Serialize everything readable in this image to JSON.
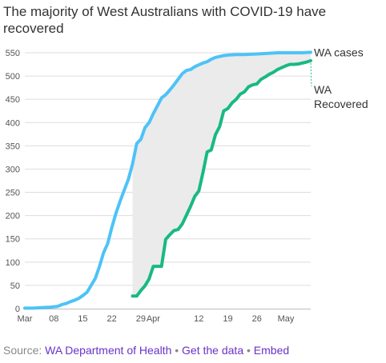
{
  "chart_data": {
    "type": "line",
    "title": "The majority of West Australians with COVID-19 have recovered",
    "xlabel": "",
    "ylabel": "",
    "x_ticks": [
      "Mar",
      "08",
      "15",
      "22",
      "29",
      "Apr",
      "12",
      "19",
      "26",
      "May"
    ],
    "x_tick_days": [
      1,
      8,
      15,
      22,
      29,
      32,
      43,
      50,
      57,
      64
    ],
    "xlim_days": [
      1,
      70
    ],
    "y_ticks": [
      0,
      50,
      100,
      150,
      200,
      250,
      300,
      350,
      400,
      450,
      500,
      550
    ],
    "ylim": [
      0,
      550
    ],
    "grid": true,
    "shaded_region": "between series from Mar 27",
    "series": [
      {
        "name": "WA cases",
        "color": "#4dc3f7",
        "x_days": [
          1,
          3,
          5,
          7,
          9,
          10,
          11,
          12,
          13,
          14,
          15,
          16,
          17,
          18,
          19,
          20,
          21,
          22,
          23,
          24,
          25,
          26,
          27,
          28,
          29,
          30,
          31,
          32,
          33,
          34,
          35,
          36,
          37,
          38,
          39,
          40,
          41,
          42,
          43,
          44,
          45,
          46,
          47,
          48,
          49,
          50,
          52,
          54,
          56,
          58,
          60,
          62,
          64,
          66,
          68,
          70
        ],
        "values": [
          1,
          1,
          2,
          3,
          5,
          9,
          11,
          15,
          18,
          22,
          28,
          35,
          50,
          65,
          90,
          120,
          140,
          175,
          205,
          231,
          255,
          278,
          311,
          355,
          364,
          389,
          400,
          419,
          436,
          453,
          460,
          470,
          481,
          493,
          505,
          512,
          514,
          520,
          524,
          528,
          531,
          536,
          540,
          542,
          544,
          545,
          546,
          546,
          547,
          548,
          549,
          550,
          550,
          550,
          550,
          551
        ]
      },
      {
        "name": "WA Recovered",
        "color": "#19b983",
        "x_days": [
          27,
          28,
          29,
          30,
          31,
          32,
          33,
          34,
          35,
          36,
          37,
          38,
          39,
          40,
          41,
          42,
          43,
          44,
          45,
          46,
          47,
          48,
          49,
          50,
          51,
          52,
          53,
          54,
          55,
          56,
          57,
          58,
          59,
          60,
          61,
          62,
          63,
          64,
          65,
          66,
          67,
          68,
          69,
          70
        ],
        "values": [
          27,
          27,
          39,
          49,
          64,
          91,
          91,
          91,
          149,
          159,
          168,
          170,
          182,
          201,
          220,
          241,
          253,
          293,
          337,
          341,
          374,
          391,
          425,
          430,
          442,
          450,
          461,
          466,
          477,
          481,
          483,
          493,
          498,
          504,
          508,
          514,
          518,
          522,
          525,
          525,
          526,
          528,
          530,
          533
        ]
      }
    ],
    "labels": {
      "cases": "WA cases",
      "recovered_line1": "WA",
      "recovered_line2": "Recovered"
    },
    "colors": {
      "cases": "#4dc3f7",
      "recovered": "#19b983",
      "shade": "#ebebeb",
      "grid": "#dddddd",
      "axis_text": "#555555"
    }
  },
  "footer": {
    "source_label": "Source: ",
    "source_link": "WA Department of Health",
    "sep": " • ",
    "get_data": "Get the data",
    "embed": "Embed"
  }
}
